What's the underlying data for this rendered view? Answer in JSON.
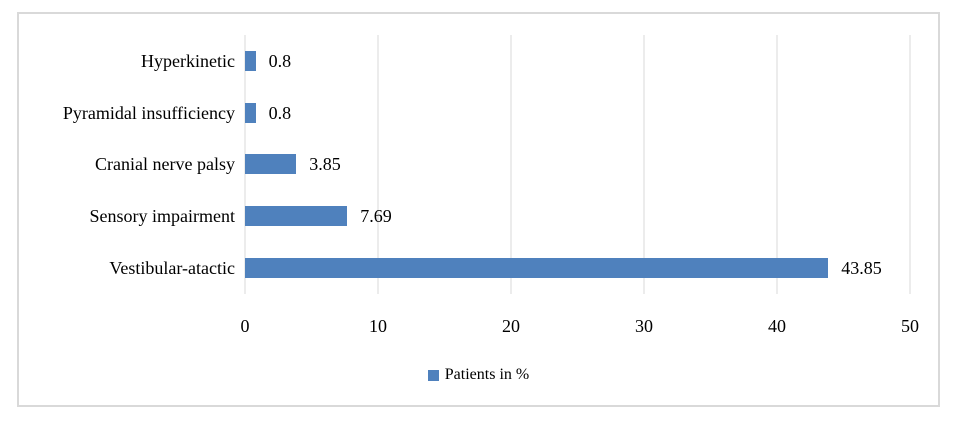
{
  "chart_data": {
    "type": "bar",
    "orientation": "horizontal",
    "categories": [
      "Hyperkinetic",
      "Pyramidal insufficiency",
      "Cranial nerve palsy",
      "Sensory impairment",
      "Vestibular-atactic"
    ],
    "values": [
      0.8,
      0.8,
      3.85,
      7.69,
      43.85
    ],
    "value_labels": [
      "0.8",
      "0.8",
      "3.85",
      "7.69",
      "43.85"
    ],
    "title": "",
    "xlabel": "",
    "ylabel": "",
    "xlim": [
      0,
      50
    ],
    "x_ticks": [
      "0",
      "10",
      "20",
      "30",
      "40",
      "50"
    ],
    "grid": true,
    "legend": {
      "label": "Patients in %",
      "position": "bottom"
    },
    "colors": {
      "bar": "#4F81BD",
      "gridline": "#D9D9D9",
      "frame_border": "#D9D9D9",
      "text": "#000000"
    }
  }
}
